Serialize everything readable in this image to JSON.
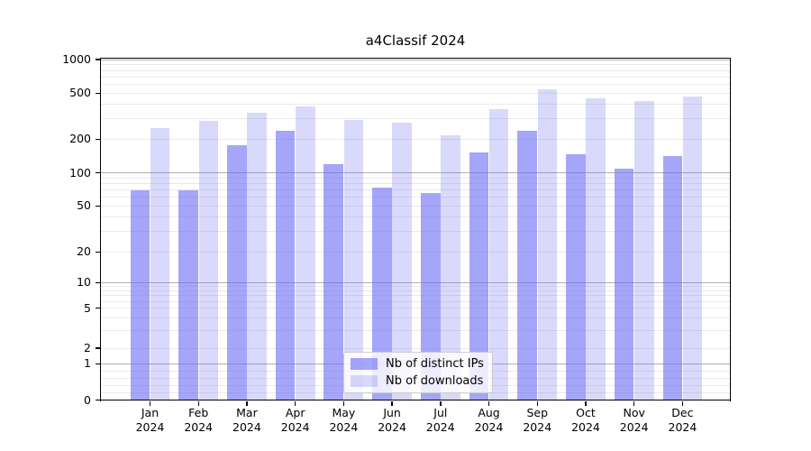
{
  "title": "a4Classif 2024",
  "chart_data": {
    "type": "bar",
    "title": "a4Classif 2024",
    "categories": [
      "Jan 2024",
      "Feb 2024",
      "Mar 2024",
      "Apr 2024",
      "May 2024",
      "Jun 2024",
      "Jul 2024",
      "Aug 2024",
      "Sep 2024",
      "Oct 2024",
      "Nov 2024",
      "Dec 2024"
    ],
    "series": [
      {
        "name": "Nb of distinct IPs",
        "color": "#6e6ef5",
        "alpha": 0.62,
        "fill": "rgba(110,110,245,0.62)",
        "values": [
          70,
          70,
          176,
          238,
          120,
          74,
          65,
          152,
          235,
          146,
          110,
          142
        ]
      },
      {
        "name": "Nb of downloads",
        "color": "#6e6ef0",
        "alpha": 0.26,
        "fill": "rgba(110,110,240,0.26)",
        "values": [
          251,
          288,
          340,
          386,
          295,
          280,
          215,
          365,
          540,
          455,
          430,
          465
        ]
      }
    ],
    "xlabel": "",
    "ylabel": "",
    "yscale": "symlog",
    "ylim": [
      0,
      1050
    ],
    "ytick_labels": [
      "0",
      "1",
      "2",
      "5",
      "10",
      "20",
      "50",
      "100",
      "200",
      "500",
      "1000"
    ],
    "ytick_values": [
      0,
      1,
      2,
      5,
      10,
      20,
      50,
      100,
      200,
      500,
      1000
    ],
    "minor_grid_values": [
      0.2,
      0.4,
      0.6,
      0.8,
      2,
      3,
      4,
      5,
      6,
      7,
      8,
      9,
      20,
      30,
      40,
      50,
      60,
      70,
      80,
      90,
      200,
      300,
      400,
      500,
      600,
      700,
      800,
      900
    ],
    "major_grid_values": [
      1,
      10,
      100,
      1000
    ],
    "grid": true,
    "legend_position": "lower center"
  },
  "legend": {
    "items": [
      {
        "label": "Nb of distinct IPs"
      },
      {
        "label": "Nb of downloads"
      }
    ]
  }
}
